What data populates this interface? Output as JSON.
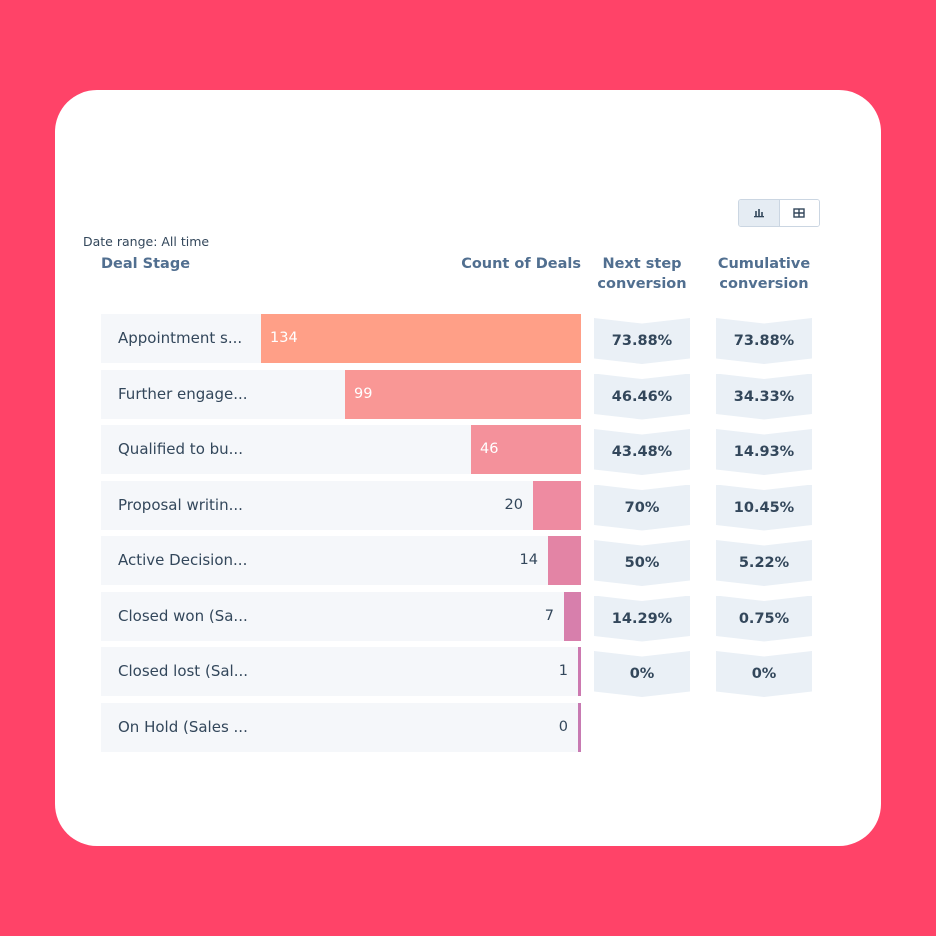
{
  "colors": {
    "background": "#ff4368",
    "card": "#ffffff",
    "row_bg": "#f5f7fa",
    "chevron_bg": "#eaf0f6",
    "header_text": "#516f90",
    "body_text": "#33475b"
  },
  "toolbar": {
    "chart_view_icon": "bar-chart-icon",
    "table_view_icon": "table-icon",
    "active_view": "chart"
  },
  "report": {
    "date_range": "Date range: All time",
    "headers": {
      "stage": "Deal Stage",
      "count": "Count of Deals",
      "next": "Next step conversion",
      "cumulative": "Cumulative conversion"
    }
  },
  "chart_data": {
    "type": "bar",
    "orientation": "horizontal-funnel",
    "xlim": [
      0,
      134
    ],
    "categories": [
      "Appointment s...",
      "Further engage...",
      "Qualified to bu...",
      "Proposal writin...",
      "Active Decision...",
      "Closed won (Sa...",
      "Closed lost (Sal...",
      "On Hold (Sales ..."
    ],
    "values": [
      134,
      99,
      46,
      20,
      14,
      7,
      1,
      0
    ],
    "bar_colors": [
      "#ff9f87",
      "#f99795",
      "#f4919b",
      "#ee8ba1",
      "#e384a5",
      "#d77fac",
      "#cc79b0",
      "#c77ab2"
    ],
    "next_step_conversion": [
      "73.88%",
      "46.46%",
      "43.48%",
      "70%",
      "50%",
      "14.29%",
      "0%"
    ],
    "cumulative_conversion": [
      "73.88%",
      "34.33%",
      "14.93%",
      "10.45%",
      "5.22%",
      "0.75%",
      "0%"
    ]
  }
}
